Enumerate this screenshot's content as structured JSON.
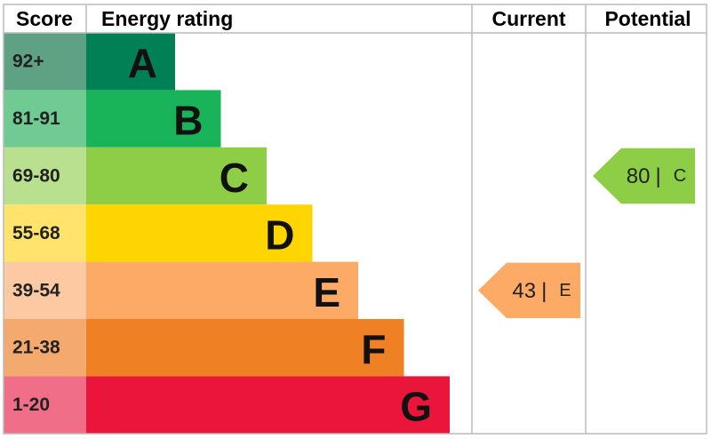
{
  "header": {
    "score": "Score",
    "rating": "Energy rating",
    "current": "Current",
    "potential": "Potential"
  },
  "bands": [
    {
      "score": "92+",
      "letter": "A",
      "color": "#008054",
      "score_color": "#5fa283"
    },
    {
      "score": "81-91",
      "letter": "B",
      "color": "#19b459",
      "score_color": "#6fcb91"
    },
    {
      "score": "69-80",
      "letter": "C",
      "color": "#8dce46",
      "score_color": "#b9e08e"
    },
    {
      "score": "55-68",
      "letter": "D",
      "color": "#ffd500",
      "score_color": "#ffe36c"
    },
    {
      "score": "39-54",
      "letter": "E",
      "color": "#fcaa65",
      "score_color": "#fdc9a2"
    },
    {
      "score": "21-38",
      "letter": "F",
      "color": "#ef8023",
      "score_color": "#f4a96f"
    },
    {
      "score": "1-20",
      "letter": "G",
      "color": "#e9153b",
      "score_color": "#f06e88"
    }
  ],
  "separator": "|",
  "current": {
    "score": "43",
    "rating": "E"
  },
  "potential": {
    "score": "80",
    "rating": "C"
  }
}
